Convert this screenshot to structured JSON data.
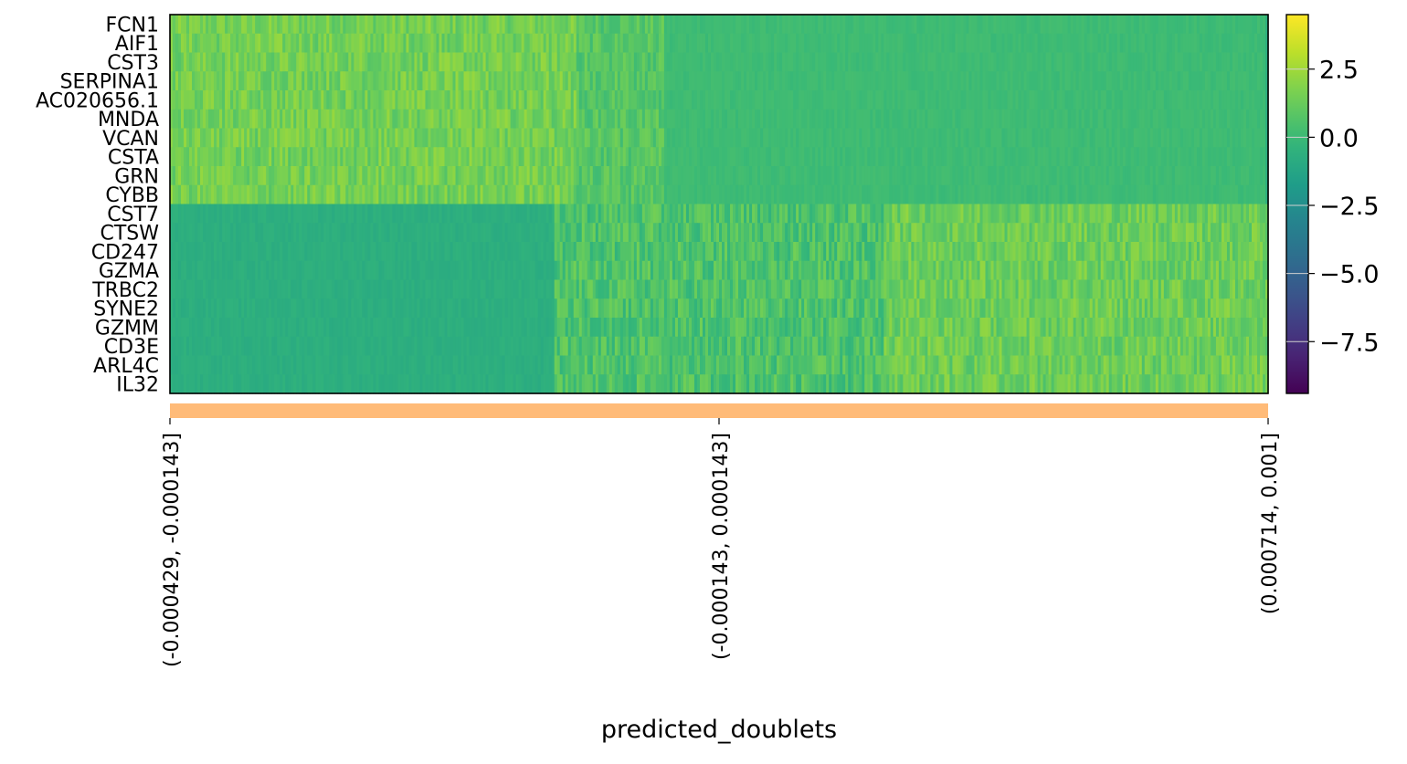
{
  "chart_data": {
    "type": "heatmap",
    "title": "",
    "xlabel": "predicted_doublets",
    "ylabel": "",
    "genes": [
      "FCN1",
      "AIF1",
      "CST3",
      "SERPINA1",
      "AC020656.1",
      "MNDA",
      "VCAN",
      "CSTA",
      "GRN",
      "CYBB",
      "CST7",
      "CTSW",
      "CD247",
      "GZMA",
      "TRBC2",
      "SYNE2",
      "GZMM",
      "CD3E",
      "ARL4C",
      "IL32"
    ],
    "gene_groups": [
      {
        "genes": [
          "FCN1",
          "AIF1",
          "CST3",
          "SERPINA1",
          "AC020656.1",
          "MNDA",
          "VCAN",
          "CSTA",
          "GRN",
          "CYBB"
        ],
        "high_in": "left (first ~37% of cells)",
        "approx_high_value": 2.0,
        "approx_low_value": 0.0
      },
      {
        "genes": [
          "CST7",
          "CTSW",
          "CD247",
          "GZMA",
          "TRBC2",
          "SYNE2",
          "GZMM",
          "CD3E",
          "ARL4C",
          "IL32"
        ],
        "high_in": "right (last ~35% of cells)",
        "approx_high_value": 2.0,
        "approx_low_value": -0.8
      }
    ],
    "x_tick_labels": [
      "(-0.000429, -0.000143]",
      "(-0.000143, 0.000143]",
      "(0.000714, 0.001]"
    ],
    "group_bar_color": "#ffbb78",
    "colorbar": {
      "colormap": "viridis",
      "vmin": -9.4,
      "vmax": 4.5,
      "ticks": [
        2.5,
        0.0,
        -2.5,
        -5.0,
        -7.5
      ],
      "tick_labels": [
        "2.5",
        "0.0",
        "−2.5",
        "−5.0",
        "−7.5"
      ]
    },
    "grid": false,
    "legend": "none"
  }
}
